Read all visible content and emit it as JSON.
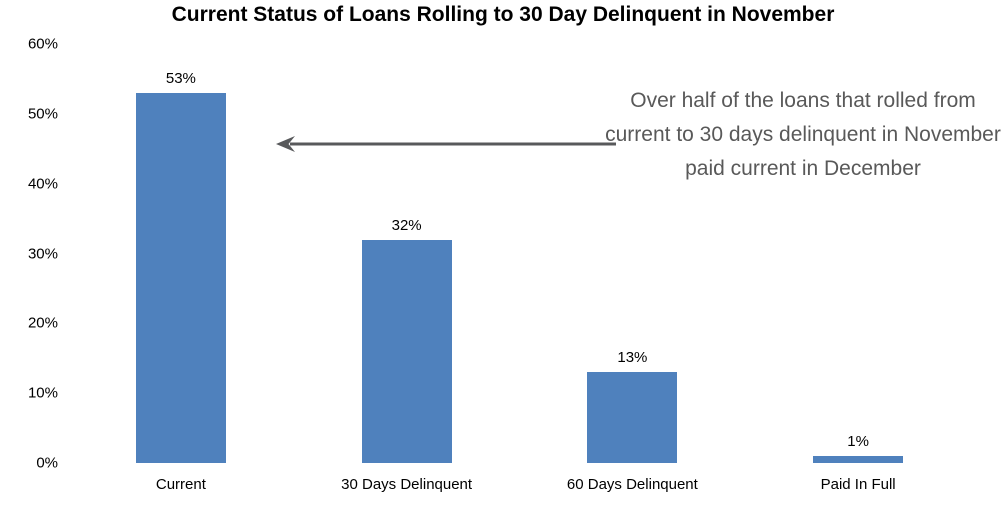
{
  "chart_data": {
    "type": "bar",
    "title": "Current Status of Loans Rolling to 30 Day Delinquent in November",
    "categories": [
      "Current",
      "30 Days Delinquent",
      "60 Days Delinquent",
      "Paid In Full"
    ],
    "values": [
      53,
      32,
      13,
      1
    ],
    "value_labels": [
      "53%",
      "32%",
      "13%",
      "1%"
    ],
    "y_ticks": [
      "60%",
      "50%",
      "40%",
      "30%",
      "20%",
      "10%",
      "0%"
    ],
    "ylim": [
      0,
      60
    ],
    "xlabel": "",
    "ylabel": "",
    "grid": false,
    "legend": "none",
    "bar_color": "#4f81bd",
    "annotation": {
      "text": "Over half of the loans that rolled from current to 30 days delinquent in November paid current in December",
      "text_color": "#595959",
      "arrow_color": "#58595b",
      "arrow_direction": "left"
    }
  }
}
